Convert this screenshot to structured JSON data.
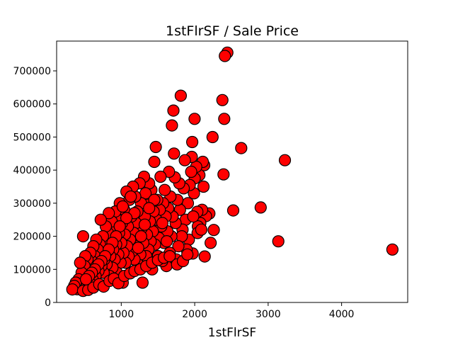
{
  "chart_data": {
    "type": "scatter",
    "title": "1stFlrSF / Sale Price",
    "xlabel": "1stFlrSF",
    "ylabel": "",
    "xlim": [
      120,
      4900
    ],
    "ylim": [
      0,
      790000
    ],
    "xticks": [
      1000,
      2000,
      3000,
      4000
    ],
    "yticks": [
      0,
      100000,
      200000,
      300000,
      400000,
      500000,
      600000,
      700000
    ],
    "marker_face": "#ff0000",
    "marker_edge": "#000000",
    "grid": false,
    "points": [
      [
        4692,
        160000
      ],
      [
        3228,
        430000
      ],
      [
        3138,
        184750
      ],
      [
        2898,
        287000
      ],
      [
        2633,
        466500
      ],
      [
        2524,
        278000
      ],
      [
        2444,
        755000
      ],
      [
        2411,
        745000
      ],
      [
        2402,
        555000
      ],
      [
        2392,
        387000
      ],
      [
        2377,
        611657
      ],
      [
        2259,
        219000
      ],
      [
        2243,
        500000
      ],
      [
        2217,
        180000
      ],
      [
        2200,
        269000
      ],
      [
        2153,
        261000
      ],
      [
        2136,
        139000
      ],
      [
        2129,
        415000
      ],
      [
        2120,
        350000
      ],
      [
        2110,
        425000
      ],
      [
        2100,
        280000
      ],
      [
        2076,
        240000
      ],
      [
        2064,
        385000
      ],
      [
        2044,
        230000
      ],
      [
        2036,
        274000
      ],
      [
        2020,
        410000
      ],
      [
        2000,
        375000
      ],
      [
        1998,
        555000
      ],
      [
        1990,
        330000
      ],
      [
        1972,
        148000
      ],
      [
        1966,
        485000
      ],
      [
        1960,
        440000
      ],
      [
        1952,
        395000
      ],
      [
        1932,
        355000
      ],
      [
        1920,
        190000
      ],
      [
        1908,
        300000
      ],
      [
        1890,
        160000
      ],
      [
        1876,
        250000
      ],
      [
        1865,
        430000
      ],
      [
        1850,
        345000
      ],
      [
        1834,
        220000
      ],
      [
        1824,
        200000
      ],
      [
        1810,
        625000
      ],
      [
        1800,
        280000
      ],
      [
        1790,
        360000
      ],
      [
        1778,
        170000
      ],
      [
        1764,
        310000
      ],
      [
        1750,
        130000
      ],
      [
        1740,
        240000
      ],
      [
        1728,
        378000
      ],
      [
        1718,
        450000
      ],
      [
        1710,
        580000
      ],
      [
        1700,
        260000
      ],
      [
        1690,
        535000
      ],
      [
        1682,
        200000
      ],
      [
        1670,
        320000
      ],
      [
        1660,
        150000
      ],
      [
        1650,
        395000
      ],
      [
        1640,
        285000
      ],
      [
        1628,
        215000
      ],
      [
        1615,
        110000
      ],
      [
        1604,
        260000
      ],
      [
        1592,
        340000
      ],
      [
        1580,
        180000
      ],
      [
        1570,
        300000
      ],
      [
        1558,
        125000
      ],
      [
        1545,
        230000
      ],
      [
        1535,
        380000
      ],
      [
        1524,
        280000
      ],
      [
        1512,
        195000
      ],
      [
        1500,
        140000
      ],
      [
        1490,
        310000
      ],
      [
        1480,
        250000
      ],
      [
        1470,
        470000
      ],
      [
        1460,
        175000
      ],
      [
        1450,
        425000
      ],
      [
        1440,
        275000
      ],
      [
        1430,
        215000
      ],
      [
        1420,
        100000
      ],
      [
        1410,
        340000
      ],
      [
        1400,
        185000
      ],
      [
        1390,
        245000
      ],
      [
        1380,
        360000
      ],
      [
        1370,
        160000
      ],
      [
        1360,
        295000
      ],
      [
        1350,
        205000
      ],
      [
        1340,
        140000
      ],
      [
        1330,
        330000
      ],
      [
        1320,
        260000
      ],
      [
        1310,
        380000
      ],
      [
        1300,
        180000
      ],
      [
        1290,
        60000
      ],
      [
        1280,
        225000
      ],
      [
        1270,
        300000
      ],
      [
        1260,
        145000
      ],
      [
        1250,
        360000
      ],
      [
        1240,
        200000
      ],
      [
        1230,
        115000
      ],
      [
        1220,
        275000
      ],
      [
        1210,
        170000
      ],
      [
        1200,
        240000
      ],
      [
        1190,
        320000
      ],
      [
        1180,
        130000
      ],
      [
        1170,
        210000
      ],
      [
        1160,
        350000
      ],
      [
        1150,
        155000
      ],
      [
        1140,
        260000
      ],
      [
        1130,
        90000
      ],
      [
        1120,
        190000
      ],
      [
        1110,
        310000
      ],
      [
        1100,
        140000
      ],
      [
        1090,
        230000
      ],
      [
        1080,
        170000
      ],
      [
        1070,
        335000
      ],
      [
        1060,
        120000
      ],
      [
        1050,
        205000
      ],
      [
        1040,
        280000
      ],
      [
        1030,
        150000
      ],
      [
        1020,
        60000
      ],
      [
        1010,
        240000
      ],
      [
        1000,
        180000
      ],
      [
        990,
        120000
      ],
      [
        980,
        300000
      ],
      [
        970,
        210000
      ],
      [
        960,
        145000
      ],
      [
        950,
        250000
      ],
      [
        940,
        90000
      ],
      [
        930,
        175000
      ],
      [
        920,
        275000
      ],
      [
        910,
        130000
      ],
      [
        900,
        220000
      ],
      [
        890,
        160000
      ],
      [
        880,
        105000
      ],
      [
        870,
        245000
      ],
      [
        860,
        190000
      ],
      [
        850,
        140000
      ],
      [
        840,
        80000
      ],
      [
        830,
        270000
      ],
      [
        820,
        210000
      ],
      [
        810,
        155000
      ],
      [
        800,
        115000
      ],
      [
        790,
        230000
      ],
      [
        780,
        175000
      ],
      [
        770,
        130000
      ],
      [
        760,
        90000
      ],
      [
        750,
        200000
      ],
      [
        740,
        150000
      ],
      [
        730,
        110000
      ],
      [
        720,
        250000
      ],
      [
        710,
        175000
      ],
      [
        700,
        135000
      ],
      [
        690,
        95000
      ],
      [
        680,
        160000
      ],
      [
        670,
        120000
      ],
      [
        660,
        190000
      ],
      [
        650,
        80000
      ],
      [
        640,
        140000
      ],
      [
        630,
        105000
      ],
      [
        620,
        170000
      ],
      [
        610,
        70000
      ],
      [
        600,
        125000
      ],
      [
        590,
        100000
      ],
      [
        580,
        150000
      ],
      [
        570,
        60000
      ],
      [
        560,
        115000
      ],
      [
        550,
        85000
      ],
      [
        540,
        130000
      ],
      [
        530,
        50000
      ],
      [
        520,
        95000
      ],
      [
        510,
        140000
      ],
      [
        500,
        110000
      ],
      [
        490,
        75000
      ],
      [
        480,
        200000
      ],
      [
        470,
        65000
      ],
      [
        460,
        90000
      ],
      [
        450,
        45000
      ],
      [
        440,
        120000
      ],
      [
        430,
        55000
      ],
      [
        420,
        70000
      ],
      [
        400,
        40000
      ],
      [
        380,
        60000
      ],
      [
        360,
        50000
      ],
      [
        334,
        39300
      ],
      [
        480,
        35000
      ],
      [
        550,
        38000
      ],
      [
        620,
        45000
      ],
      [
        700,
        55000
      ],
      [
        760,
        48000
      ],
      [
        840,
        65000
      ],
      [
        900,
        72000
      ],
      [
        960,
        58000
      ],
      [
        1040,
        80000
      ],
      [
        1120,
        88000
      ],
      [
        1180,
        95000
      ],
      [
        1260,
        100000
      ],
      [
        1340,
        110000
      ],
      [
        1420,
        120000
      ],
      [
        1500,
        128000
      ],
      [
        1580,
        135000
      ],
      [
        1660,
        140000
      ],
      [
        1760,
        115000
      ],
      [
        1840,
        125000
      ],
      [
        1900,
        145000
      ],
      [
        1980,
        260000
      ],
      [
        2040,
        210000
      ],
      [
        2090,
        220000
      ],
      [
        1560,
        240000
      ],
      [
        1620,
        185000
      ],
      [
        1450,
        310000
      ],
      [
        1380,
        285000
      ],
      [
        1320,
        235000
      ],
      [
        1270,
        200000
      ],
      [
        1230,
        165000
      ],
      [
        1180,
        270000
      ],
      [
        1130,
        320000
      ],
      [
        1070,
        255000
      ],
      [
        1020,
        290000
      ],
      [
        980,
        230000
      ],
      [
        930,
        200000
      ],
      [
        880,
        180000
      ],
      [
        830,
        160000
      ],
      [
        780,
        140000
      ],
      [
        730,
        125000
      ],
      [
        690,
        115000
      ],
      [
        640,
        100000
      ],
      [
        600,
        90000
      ],
      [
        560,
        80000
      ],
      [
        520,
        70000
      ]
    ]
  }
}
